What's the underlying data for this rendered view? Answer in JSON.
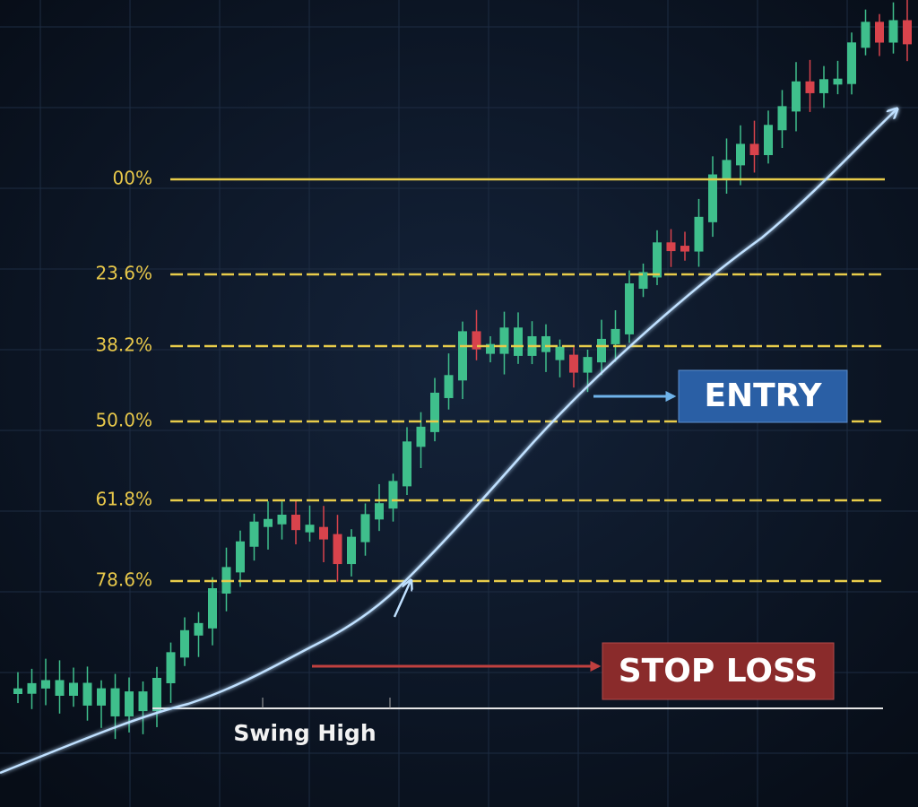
{
  "levels": [
    "00%",
    "23.6%",
    "38.2%",
    "50.0%",
    "61.8%",
    "78.6%"
  ],
  "labels": {
    "entry": "ENTRY",
    "stop_loss": "STOP LOSS",
    "swing": "Swing High"
  }
}
